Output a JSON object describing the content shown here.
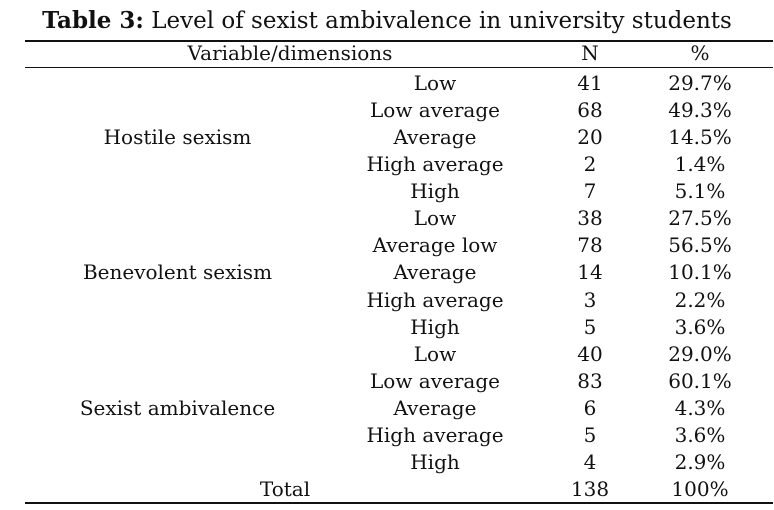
{
  "caption": {
    "label": "Table 3:",
    "text": " Level of sexist ambivalence in university students"
  },
  "header": {
    "variable": "Variable/dimensions",
    "n": "N",
    "percent": "%"
  },
  "groups": [
    {
      "name": "Hostile sexism",
      "rows": [
        {
          "level": "Low",
          "n": "41",
          "pct": "29.7%"
        },
        {
          "level": "Low average",
          "n": "68",
          "pct": "49.3%"
        },
        {
          "level": "Average",
          "n": "20",
          "pct": "14.5%"
        },
        {
          "level": "High average",
          "n": "2",
          "pct": "1.4%"
        },
        {
          "level": "High",
          "n": "7",
          "pct": "5.1%"
        }
      ]
    },
    {
      "name": "Benevolent sexism",
      "rows": [
        {
          "level": "Low",
          "n": "38",
          "pct": "27.5%"
        },
        {
          "level": "Average low",
          "n": "78",
          "pct": "56.5%"
        },
        {
          "level": "Average",
          "n": "14",
          "pct": "10.1%"
        },
        {
          "level": "High average",
          "n": "3",
          "pct": "2.2%"
        },
        {
          "level": "High",
          "n": "5",
          "pct": "3.6%"
        }
      ]
    },
    {
      "name": "Sexist ambivalence",
      "rows": [
        {
          "level": "Low",
          "n": "40",
          "pct": "29.0%"
        },
        {
          "level": "Low average",
          "n": "83",
          "pct": "60.1%"
        },
        {
          "level": "Average",
          "n": "6",
          "pct": "4.3%"
        },
        {
          "level": "High average",
          "n": "5",
          "pct": "3.6%"
        },
        {
          "level": "High",
          "n": "4",
          "pct": "2.9%"
        }
      ]
    }
  ],
  "total": {
    "label": "Total",
    "n": "138",
    "pct": "100%"
  }
}
